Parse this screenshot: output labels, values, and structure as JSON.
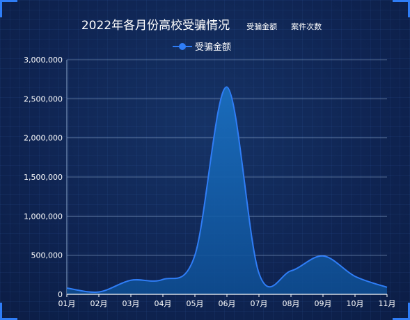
{
  "title": "2022年各月份高校受骗情况",
  "tabs": [
    "受骗金额",
    "案件次数"
  ],
  "chart_data": {
    "type": "area",
    "title": "2022年各月份高校受骗情况",
    "categories": [
      "01月",
      "02月",
      "03月",
      "04月",
      "05月",
      "06月",
      "07月",
      "08月",
      "09月",
      "10月",
      "11月"
    ],
    "series": [
      {
        "name": "受骗金额",
        "values": [
          80000,
          30000,
          180000,
          190000,
          500000,
          2650000,
          270000,
          300000,
          490000,
          230000,
          90000
        ]
      }
    ],
    "yticks": [
      "0",
      "500,000",
      "1,000,000",
      "1,500,000",
      "2,000,000",
      "2,500,000",
      "3,000,000"
    ],
    "ylim": [
      0,
      3000000
    ],
    "grid": true,
    "legend": "top-center",
    "colors": {
      "line": "#2f7df6",
      "fill": "#1560a8",
      "axis_text": "#ffffff",
      "grid": "#8aa6cc"
    }
  }
}
